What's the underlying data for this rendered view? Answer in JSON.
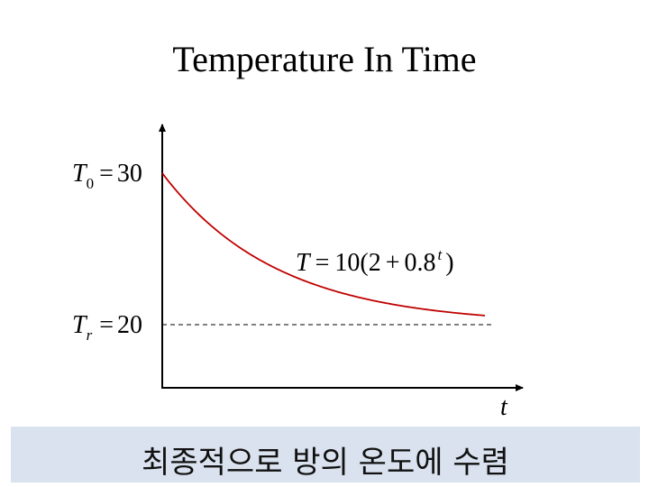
{
  "title": "Temperature In Time",
  "caption": "최종적으로 방의 온도에 수렴",
  "colors": {
    "curve": "#c00000",
    "axis": "#000000",
    "caption_bg": "#d9e2ee"
  },
  "chart_data": {
    "type": "line",
    "title": "Temperature In Time",
    "xlabel": "t",
    "ylabel": "",
    "equation": {
      "T": "T",
      "eq": "=",
      "lead": "10(2",
      "plus": "+",
      "base": "0.8",
      "exp": "t",
      "close": ")"
    },
    "annotations": {
      "t0": {
        "sym": "T",
        "sub": "0",
        "eq": "=",
        "value": "30",
        "y": 30
      },
      "tr": {
        "sym": "T",
        "sub": "r",
        "eq": "=",
        "value": "20",
        "y": 20
      }
    },
    "ylim": [
      15,
      30
    ],
    "xlim": [
      0,
      14.5
    ],
    "grid": false,
    "series": [
      {
        "formula": "10*(2+0.8^t)",
        "t_range": [
          0,
          12.6
        ]
      }
    ],
    "asymptote": {
      "y": 20,
      "style": "dashed"
    }
  }
}
